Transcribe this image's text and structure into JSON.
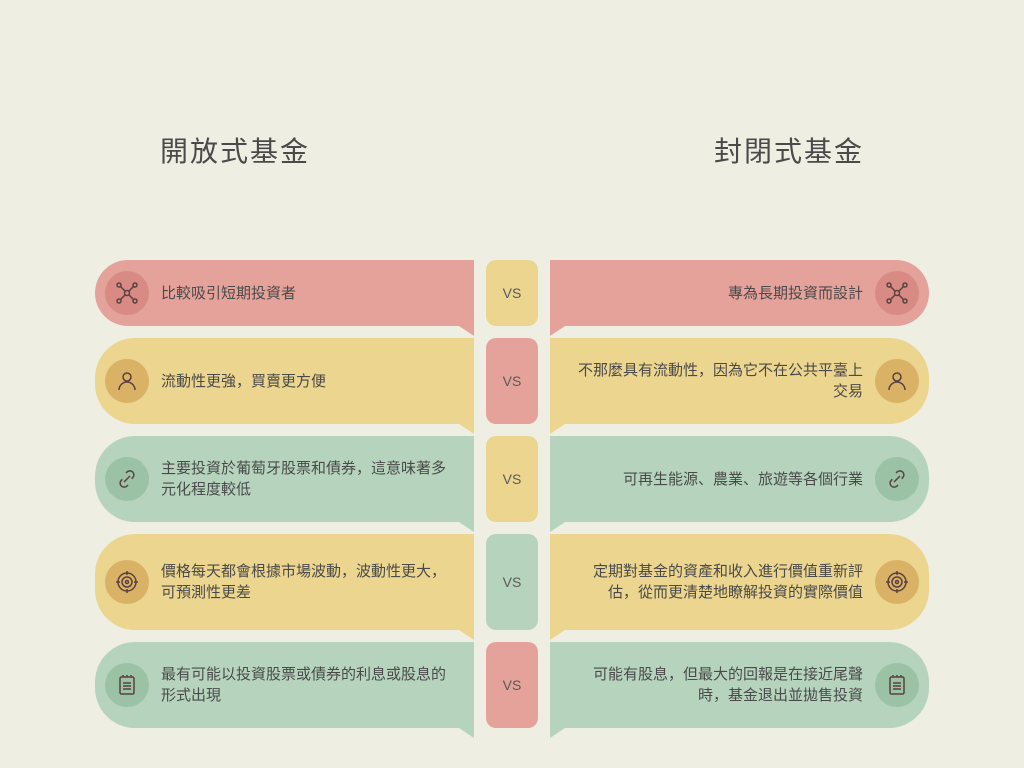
{
  "type": "comparison-infographic",
  "background_color": "#eeeee2",
  "text_color": "#4a4a4a",
  "headers": {
    "left": "開放式基金",
    "right": "封閉式基金",
    "fontsize": 28
  },
  "vs_label": "VS",
  "colors": {
    "red": {
      "panel": "#e5a29b",
      "icon_bg": "#d88b84",
      "vs": "#e5a29b"
    },
    "yellow": {
      "panel": "#ecd58f",
      "icon_bg": "#d9b265",
      "vs": "#ecd58f"
    },
    "green": {
      "panel": "#b6d4bd",
      "icon_bg": "#9bc2a5",
      "vs": "#b6d4bd"
    }
  },
  "rows": [
    {
      "color": "red",
      "vs_color": "yellow",
      "icon": "network",
      "height": "normal",
      "left": "比較吸引短期投資者",
      "right": "專為長期投資而設計"
    },
    {
      "color": "yellow",
      "vs_color": "red",
      "icon": "user",
      "height": "tall",
      "left": "流動性更強，買賣更方便",
      "right": "不那麼具有流動性，因為它不在公共平臺上交易"
    },
    {
      "color": "green",
      "vs_color": "yellow",
      "icon": "link",
      "height": "tall",
      "left": "主要投資於葡萄牙股票和債券，這意味著多元化程度較低",
      "right": "可再生能源、農業、旅遊等各個行業"
    },
    {
      "color": "yellow",
      "vs_color": "green",
      "icon": "target",
      "height": "taller",
      "left": "價格每天都會根據市場波動，波動性更大，可預測性更差",
      "right": "定期對基金的資產和收入進行價值重新評估，從而更清楚地瞭解投資的實際價值"
    },
    {
      "color": "green",
      "vs_color": "red",
      "icon": "notes",
      "height": "tall",
      "left": "最有可能以投資股票或債券的利息或股息的形式出現",
      "right": "可能有股息，但最大的回報是在接近尾聲時，基金退出並拋售投資"
    }
  ]
}
